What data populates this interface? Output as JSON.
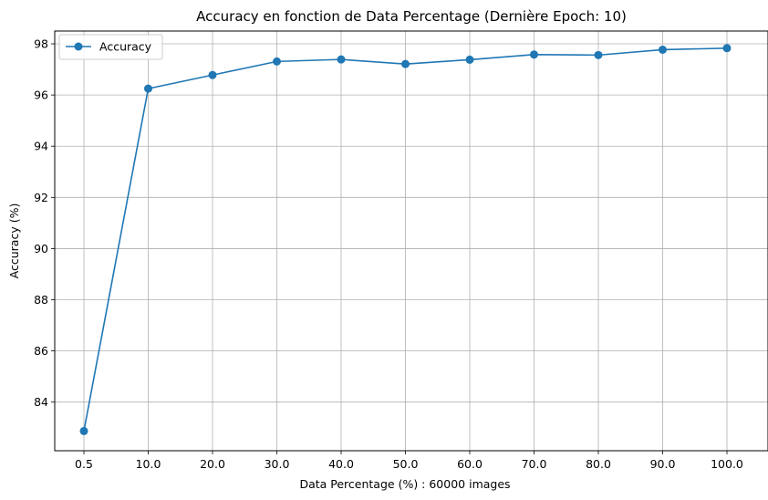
{
  "chart_data": {
    "type": "line",
    "title": "Accuracy en fonction de Data Percentage (Dernière Epoch: 10)",
    "xlabel": "Data Percentage (%) : 60000 images",
    "ylabel": "Accuracy (%)",
    "categories": [
      "0.5",
      "10.0",
      "20.0",
      "30.0",
      "40.0",
      "50.0",
      "60.0",
      "70.0",
      "80.0",
      "90.0",
      "100.0"
    ],
    "series": [
      {
        "name": "Accuracy",
        "color": "#1f77b4",
        "values": [
          82.87,
          96.25,
          96.78,
          97.31,
          97.39,
          97.21,
          97.38,
          97.58,
          97.56,
          97.77,
          97.83
        ]
      }
    ],
    "ylim": [
      82.1,
      98.5
    ],
    "yticks": [
      84,
      86,
      88,
      90,
      92,
      94,
      96,
      98
    ],
    "grid": true,
    "legend_position": "top-left"
  }
}
